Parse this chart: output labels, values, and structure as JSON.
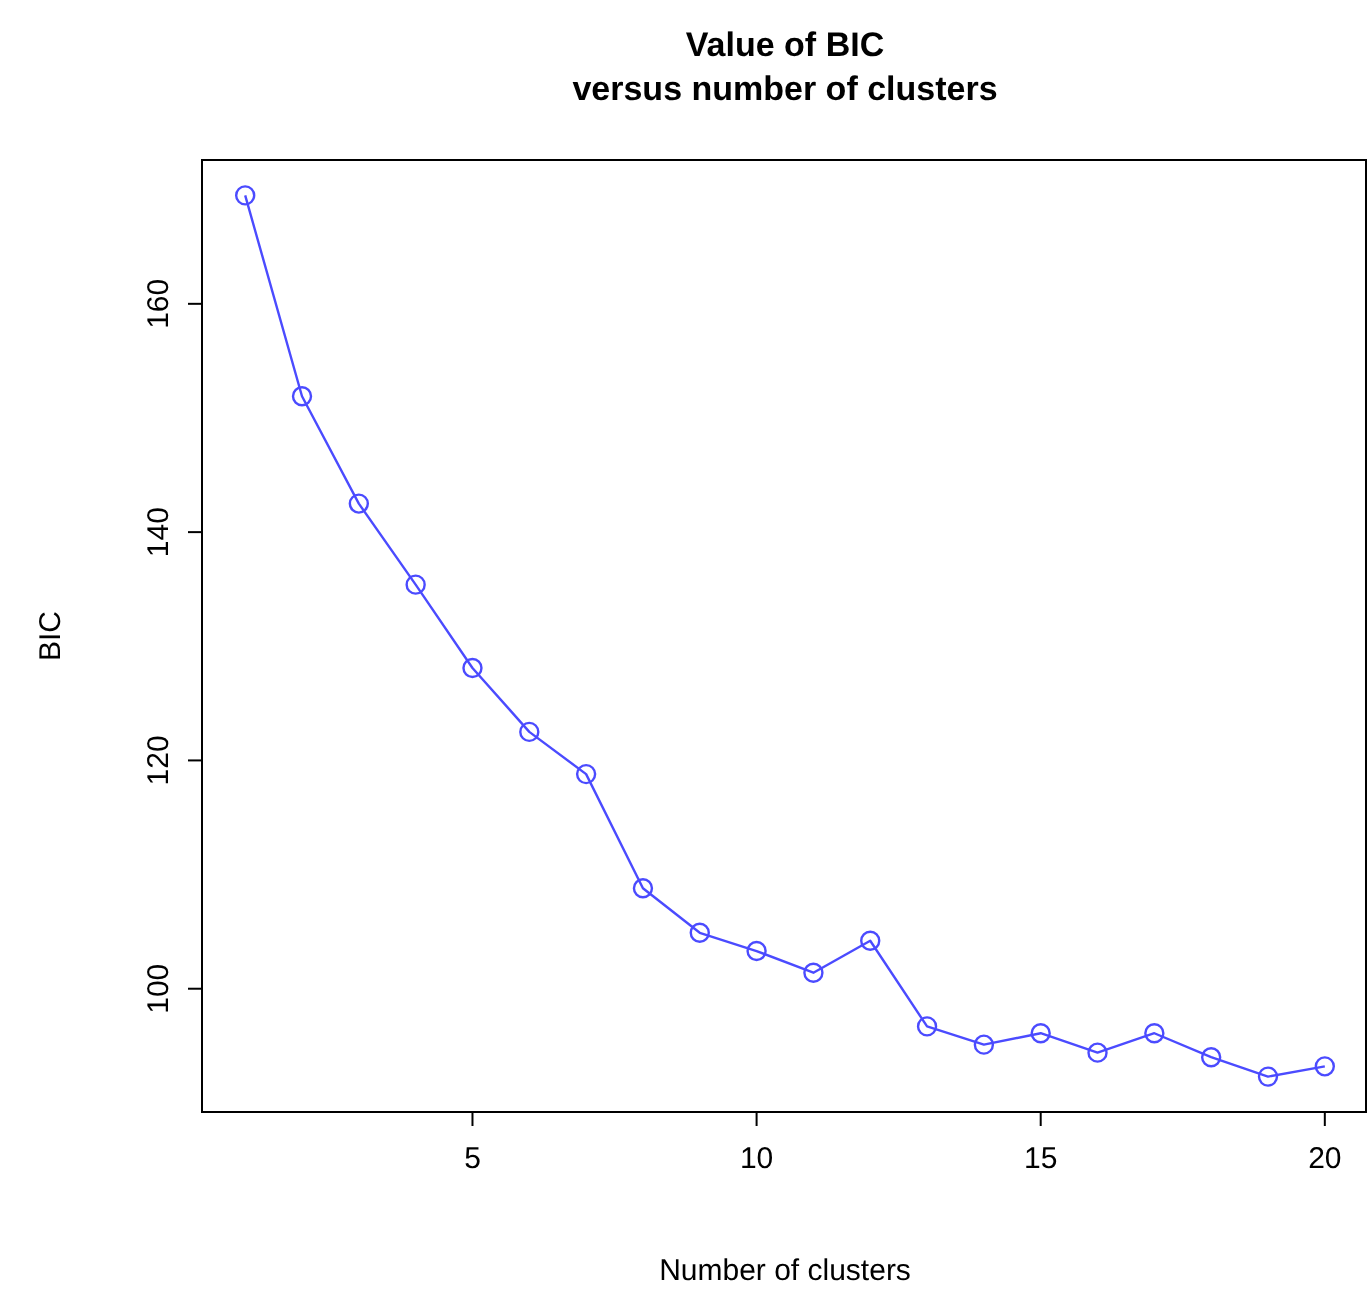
{
  "chart_data": {
    "type": "line",
    "title": "Value of BIC\nversus number of clusters",
    "xlabel": "Number of clusters",
    "ylabel": "BIC",
    "x": [
      1,
      2,
      3,
      4,
      5,
      6,
      7,
      8,
      9,
      10,
      11,
      12,
      13,
      14,
      15,
      16,
      17,
      18,
      19,
      20
    ],
    "series": [
      {
        "color": "#4b4bff",
        "values": [
          169.5,
          151.9,
          142.5,
          135.4,
          128.1,
          122.5,
          118.8,
          108.8,
          104.9,
          103.3,
          101.4,
          104.2,
          96.7,
          95.1,
          96.1,
          94.4,
          96.1,
          94.0,
          92.3,
          93.2
        ]
      }
    ],
    "xlim": [
      0.24,
      20.76
    ],
    "ylim": [
      89.2,
      172.6
    ],
    "xticks": [
      5,
      10,
      15,
      20
    ],
    "yticks": [
      100,
      120,
      140,
      160
    ],
    "marker": "circle",
    "line_style": "solid",
    "grid": false
  }
}
